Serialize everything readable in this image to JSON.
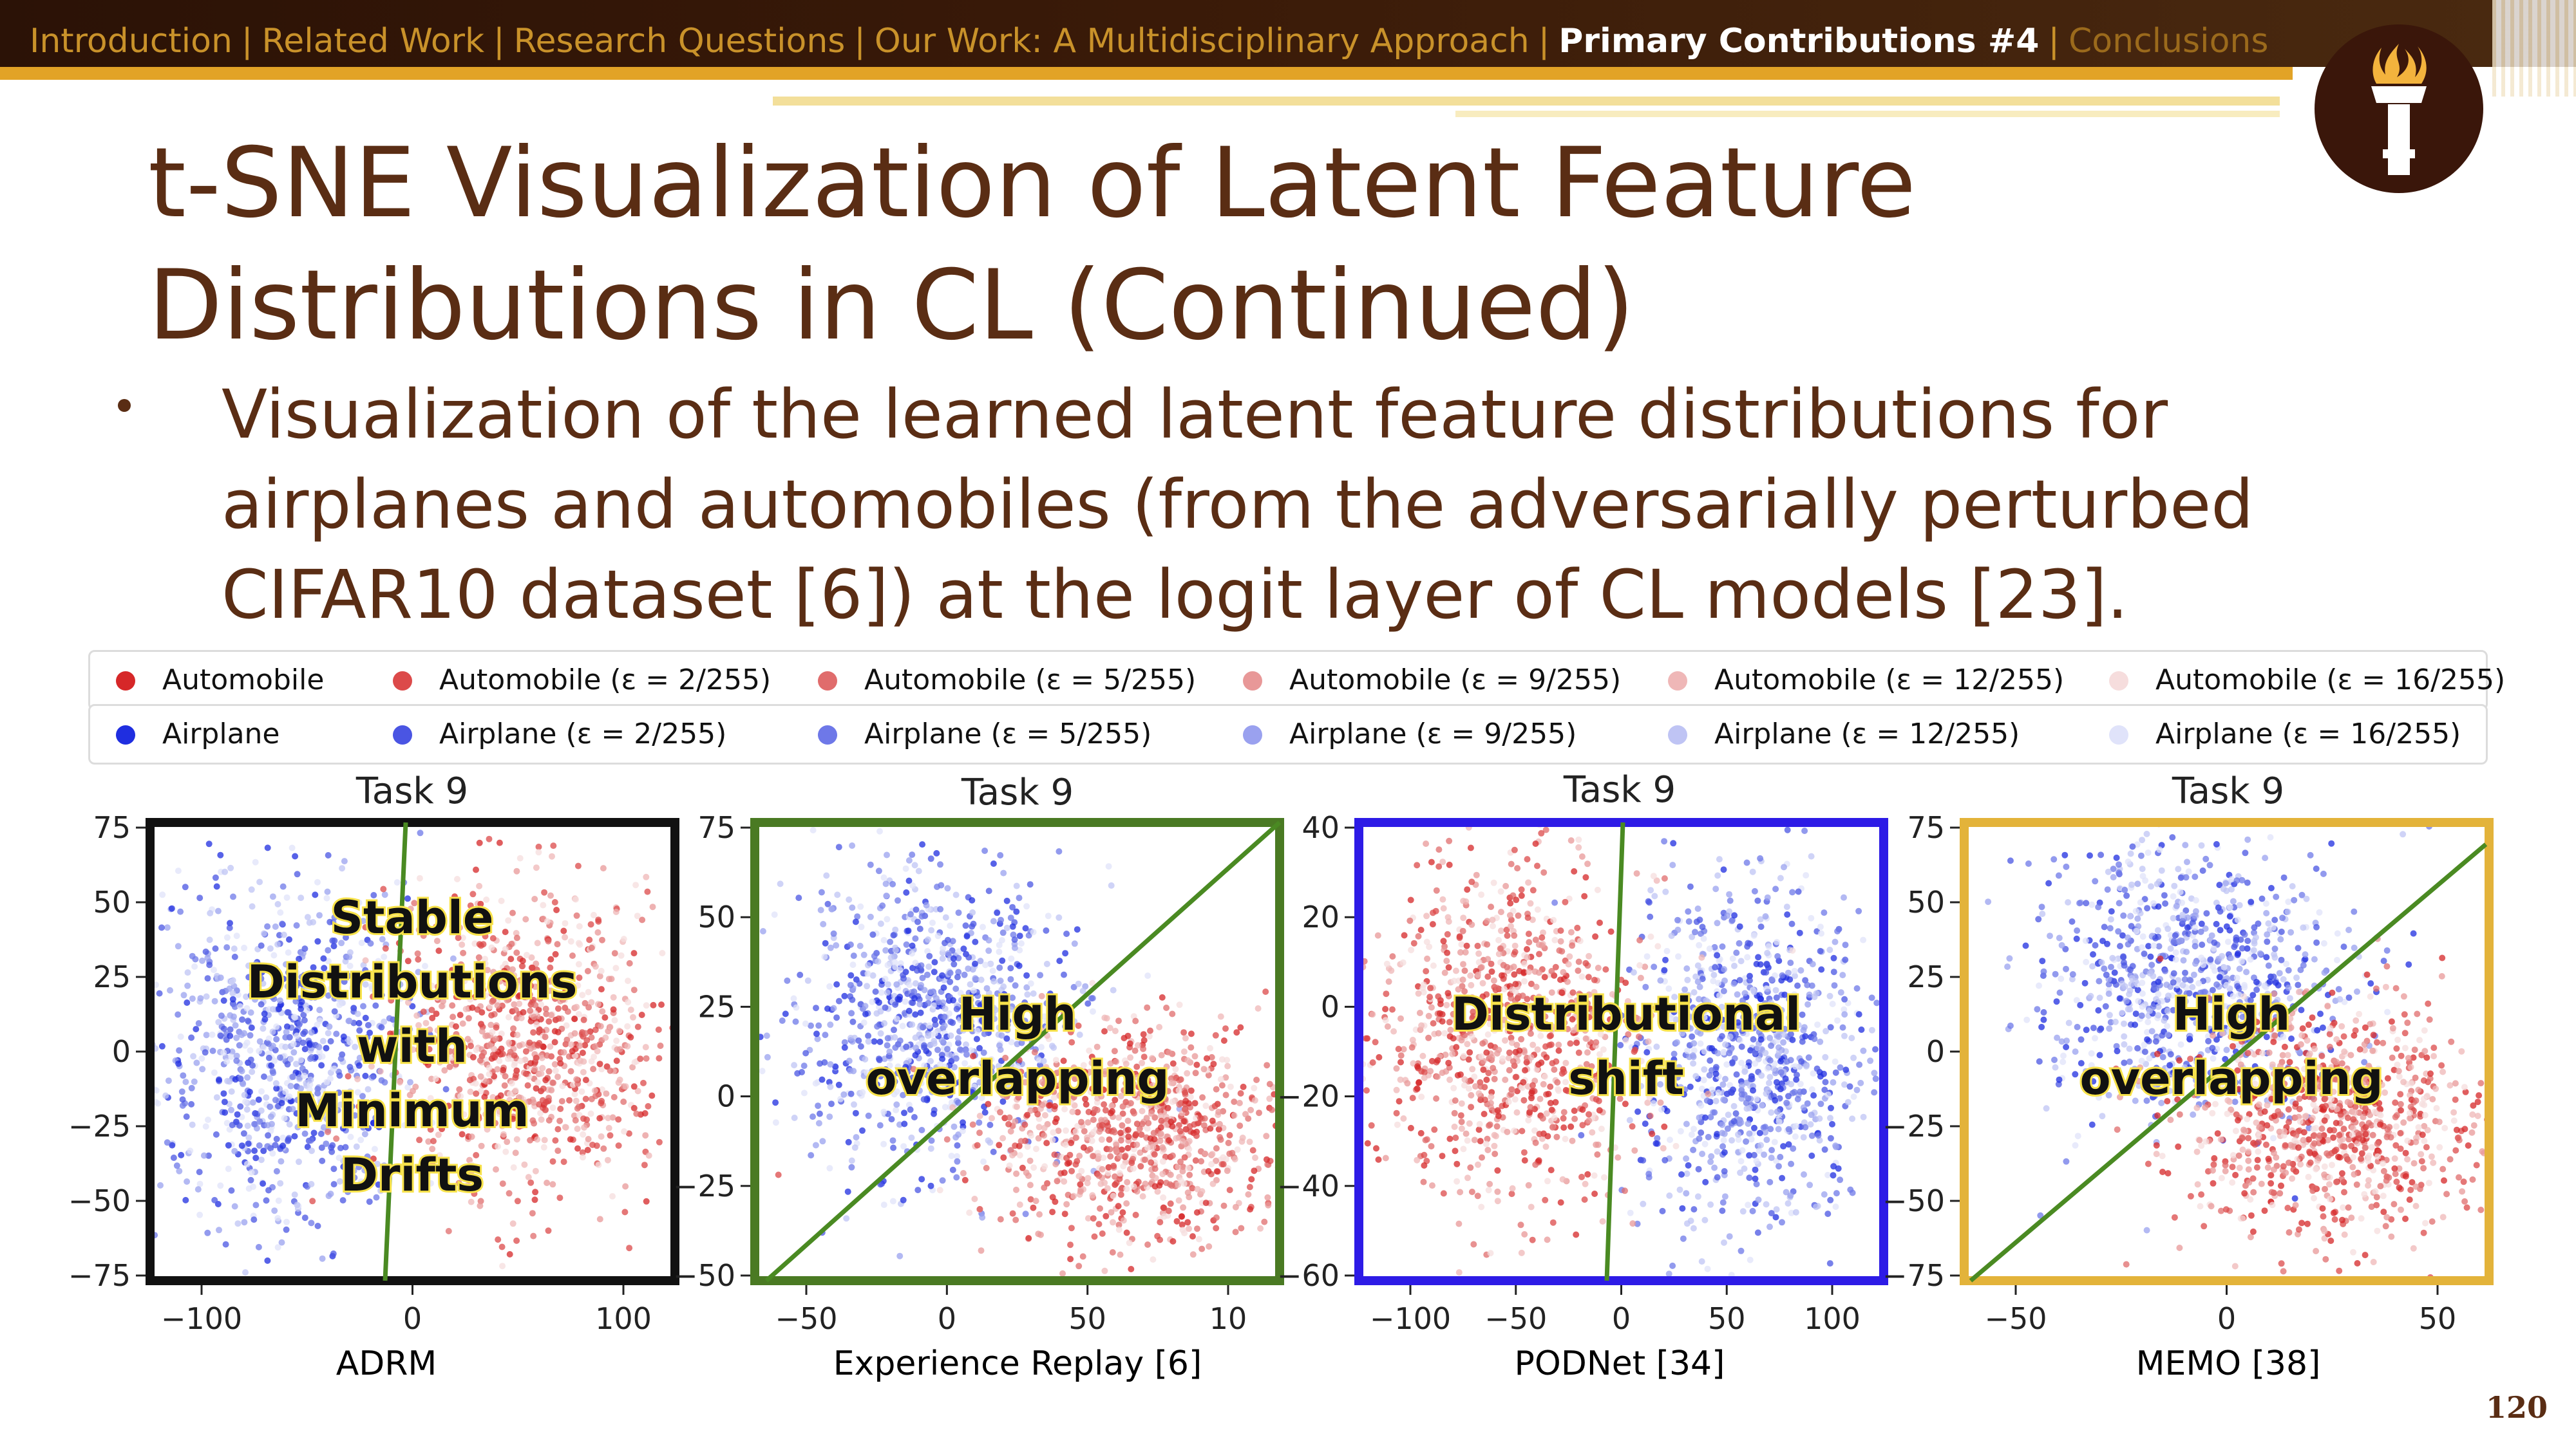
{
  "nav": {
    "items": [
      {
        "label": "Introduction",
        "state": "normal"
      },
      {
        "label": "Related Work",
        "state": "normal"
      },
      {
        "label": "Research Questions",
        "state": "normal"
      },
      {
        "label": "Our Work: A Multidisciplinary Approach",
        "state": "normal"
      },
      {
        "label": "Primary Contributions #4",
        "state": "active"
      },
      {
        "label": "Conclusions",
        "state": "dim"
      }
    ],
    "separator": "|"
  },
  "title": "t-SNE Visualization of Latent Feature Distributions in CL (Continued)",
  "bullet": "Visualization of the learned latent feature distributions for airplanes and automobiles (from the adversarially perturbed CIFAR10 dataset [6]) at the logit layer of CL models [23].",
  "legend": {
    "automobile": [
      {
        "label": "Automobile",
        "color": "#d62728"
      },
      {
        "label": "Automobile (ε = 2/255)",
        "color": "#dc4a4a"
      },
      {
        "label": "Automobile (ε = 5/255)",
        "color": "#e06c6c"
      },
      {
        "label": "Automobile (ε = 9/255)",
        "color": "#e89898"
      },
      {
        "label": "Automobile (ε = 12/255)",
        "color": "#efb7b7"
      },
      {
        "label": "Automobile (ε = 16/255)",
        "color": "#f6dddd"
      }
    ],
    "airplane": [
      {
        "label": "Airplane",
        "color": "#1f2ee0"
      },
      {
        "label": "Airplane (ε = 2/255)",
        "color": "#4a55e3"
      },
      {
        "label": "Airplane (ε = 5/255)",
        "color": "#6e78e8"
      },
      {
        "label": "Airplane (ε = 9/255)",
        "color": "#9aa1ef"
      },
      {
        "label": "Airplane (ε = 12/255)",
        "color": "#bfc4f4"
      },
      {
        "label": "Airplane (ε = 16/255)",
        "color": "#e0e3fa"
      }
    ]
  },
  "chart_data": [
    {
      "type": "scatter",
      "title": "Task 9",
      "caption": "ADRM",
      "frame_color": "#111111",
      "annotation": "Stable Distributions with Minimum Drifts",
      "xticks": [
        "−100",
        "0",
        "100"
      ],
      "yticks": [
        "75",
        "50",
        "25",
        "0",
        "−25",
        "−50",
        "−75"
      ],
      "xlim": [
        -120,
        130
      ],
      "ylim": [
        -78,
        78
      ]
    },
    {
      "type": "scatter",
      "title": "Task 9",
      "caption": "Experience Replay [6]",
      "frame_color": "#4a7a23",
      "annotation": "High overlapping",
      "xticks": [
        "−50",
        "0",
        "50",
        "10"
      ],
      "yticks": [
        "75",
        "50",
        "25",
        "0",
        "−25",
        "−50"
      ],
      "xlim": [
        -85,
        95
      ],
      "ylim": [
        -70,
        95
      ]
    },
    {
      "type": "scatter",
      "title": "Task 9",
      "caption": "PODNet [34]",
      "frame_color": "#2d1be6",
      "annotation": "Distributional shift",
      "xticks": [
        "−100",
        "−50",
        "0",
        "50",
        "100"
      ],
      "yticks": [
        "40",
        "20",
        "0",
        "−20",
        "−40",
        "−60"
      ],
      "xlim": [
        -110,
        110
      ],
      "ylim": [
        -60,
        48
      ]
    },
    {
      "type": "scatter",
      "title": "Task 9",
      "caption": "MEMO [38]",
      "frame_color": "#e3b33a",
      "annotation": "High overlapping",
      "xticks": [
        "−50",
        "0",
        "50"
      ],
      "yticks": [
        "75",
        "50",
        "25",
        "0",
        "−25",
        "−50",
        "−75"
      ],
      "xlim": [
        -90,
        100
      ],
      "ylim": [
        -75,
        80
      ]
    }
  ],
  "page_number": "120"
}
